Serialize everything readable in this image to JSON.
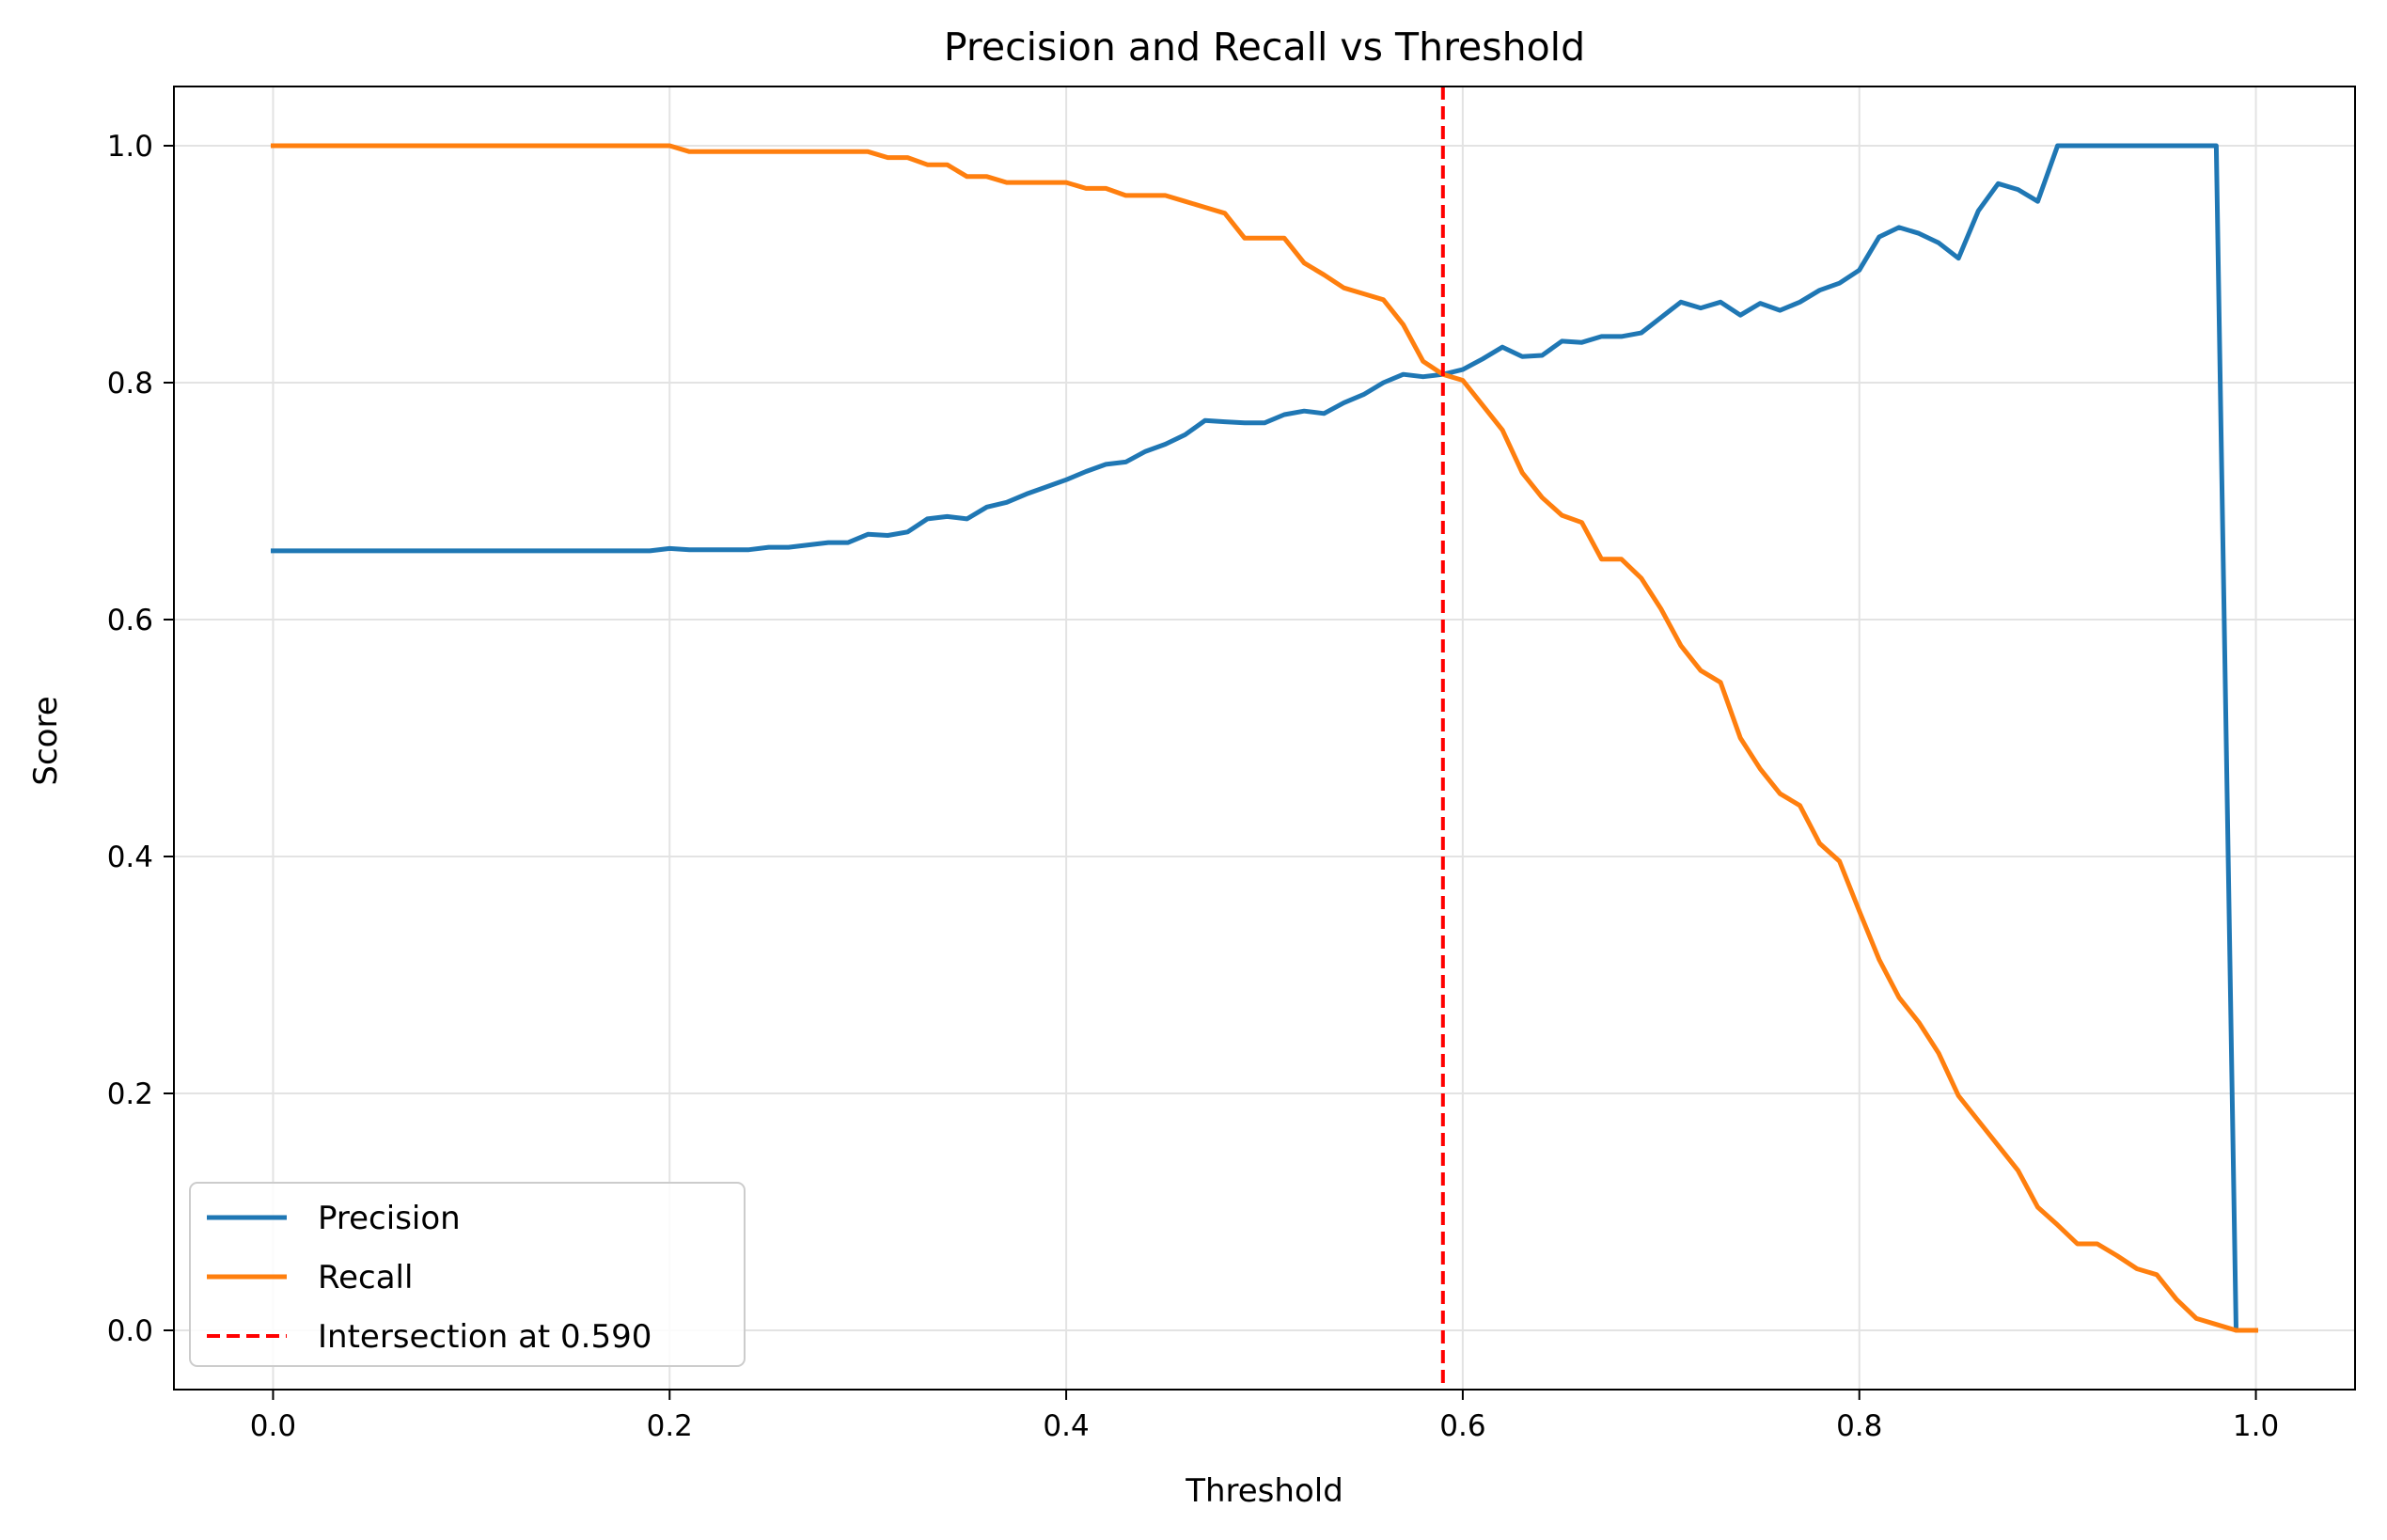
{
  "chart_data": {
    "type": "line",
    "title": "Precision and Recall vs Threshold",
    "xlabel": "Threshold",
    "ylabel": "Score",
    "xlim": [
      -0.05,
      1.05
    ],
    "ylim": [
      -0.05,
      1.05
    ],
    "xticks": [
      0.0,
      0.2,
      0.4,
      0.6,
      0.8,
      1.0
    ],
    "xtick_labels": [
      "0.0",
      "0.2",
      "0.4",
      "0.6",
      "0.8",
      "1.0"
    ],
    "yticks": [
      0.0,
      0.2,
      0.4,
      0.6,
      0.8,
      1.0
    ],
    "ytick_labels": [
      "0.0",
      "0.2",
      "0.4",
      "0.6",
      "0.8",
      "1.0"
    ],
    "grid": true,
    "legend_position": "lower-left",
    "series": [
      {
        "name": "Precision",
        "color": "#1f77b4",
        "x": [
          0.0,
          0.01,
          0.02,
          0.03,
          0.04,
          0.05,
          0.06,
          0.07,
          0.08,
          0.09,
          0.1,
          0.11,
          0.12,
          0.13,
          0.14,
          0.15,
          0.16,
          0.17,
          0.18,
          0.19,
          0.2,
          0.21,
          0.22,
          0.23,
          0.24,
          0.25,
          0.26,
          0.27,
          0.28,
          0.29,
          0.3,
          0.31,
          0.32,
          0.33,
          0.34,
          0.35,
          0.36,
          0.37,
          0.38,
          0.39,
          0.4,
          0.41,
          0.42,
          0.43,
          0.44,
          0.45,
          0.46,
          0.47,
          0.48,
          0.49,
          0.5,
          0.51,
          0.52,
          0.53,
          0.54,
          0.55,
          0.56,
          0.57,
          0.58,
          0.59,
          0.6,
          0.61,
          0.62,
          0.63,
          0.64,
          0.65,
          0.66,
          0.67,
          0.68,
          0.69,
          0.7,
          0.71,
          0.72,
          0.73,
          0.74,
          0.75,
          0.76,
          0.77,
          0.78,
          0.79,
          0.8,
          0.81,
          0.82,
          0.83,
          0.84,
          0.85,
          0.86,
          0.87,
          0.88,
          0.89,
          0.9,
          0.91,
          0.92,
          0.93,
          0.94,
          0.95,
          0.96,
          0.97,
          0.98,
          0.99,
          1.0
        ],
        "y": [
          0.658,
          0.658,
          0.658,
          0.658,
          0.658,
          0.658,
          0.658,
          0.658,
          0.658,
          0.658,
          0.658,
          0.658,
          0.658,
          0.658,
          0.658,
          0.658,
          0.658,
          0.658,
          0.658,
          0.658,
          0.66,
          0.659,
          0.659,
          0.659,
          0.659,
          0.661,
          0.661,
          0.663,
          0.665,
          0.665,
          0.672,
          0.671,
          0.674,
          0.685,
          0.687,
          0.685,
          0.695,
          0.699,
          0.706,
          0.712,
          0.718,
          0.725,
          0.731,
          0.733,
          0.742,
          0.748,
          0.756,
          0.768,
          0.767,
          0.766,
          0.766,
          0.773,
          0.776,
          0.774,
          0.783,
          0.79,
          0.8,
          0.807,
          0.805,
          0.807,
          0.811,
          0.82,
          0.83,
          0.822,
          0.823,
          0.835,
          0.834,
          0.839,
          0.839,
          0.842,
          0.855,
          0.868,
          0.863,
          0.868,
          0.857,
          0.867,
          0.861,
          0.868,
          0.878,
          0.884,
          0.895,
          0.923,
          0.931,
          0.926,
          0.918,
          0.905,
          0.945,
          0.968,
          0.963,
          0.953,
          1.0,
          1.0,
          1.0,
          1.0,
          1.0,
          1.0,
          1.0,
          1.0,
          1.0,
          0.0,
          0.0
        ]
      },
      {
        "name": "Recall",
        "color": "#ff7f0e",
        "x": [
          0.0,
          0.01,
          0.02,
          0.03,
          0.04,
          0.05,
          0.06,
          0.07,
          0.08,
          0.09,
          0.1,
          0.11,
          0.12,
          0.13,
          0.14,
          0.15,
          0.16,
          0.17,
          0.18,
          0.19,
          0.2,
          0.21,
          0.22,
          0.23,
          0.24,
          0.25,
          0.26,
          0.27,
          0.28,
          0.29,
          0.3,
          0.31,
          0.32,
          0.33,
          0.34,
          0.35,
          0.36,
          0.37,
          0.38,
          0.39,
          0.4,
          0.41,
          0.42,
          0.43,
          0.44,
          0.45,
          0.46,
          0.47,
          0.48,
          0.49,
          0.5,
          0.51,
          0.52,
          0.53,
          0.54,
          0.55,
          0.56,
          0.57,
          0.58,
          0.59,
          0.6,
          0.61,
          0.62,
          0.63,
          0.64,
          0.65,
          0.66,
          0.67,
          0.68,
          0.69,
          0.7,
          0.71,
          0.72,
          0.73,
          0.74,
          0.75,
          0.76,
          0.77,
          0.78,
          0.79,
          0.8,
          0.81,
          0.82,
          0.83,
          0.84,
          0.85,
          0.86,
          0.87,
          0.88,
          0.89,
          0.9,
          0.91,
          0.92,
          0.93,
          0.94,
          0.95,
          0.96,
          0.97,
          0.98,
          0.99,
          1.0
        ],
        "y": [
          1.0,
          1.0,
          1.0,
          1.0,
          1.0,
          1.0,
          1.0,
          1.0,
          1.0,
          1.0,
          1.0,
          1.0,
          1.0,
          1.0,
          1.0,
          1.0,
          1.0,
          1.0,
          1.0,
          1.0,
          1.0,
          0.995,
          0.995,
          0.995,
          0.995,
          0.995,
          0.995,
          0.995,
          0.995,
          0.995,
          0.995,
          0.99,
          0.99,
          0.984,
          0.984,
          0.974,
          0.974,
          0.969,
          0.969,
          0.969,
          0.969,
          0.964,
          0.964,
          0.958,
          0.958,
          0.958,
          0.953,
          0.948,
          0.943,
          0.922,
          0.922,
          0.922,
          0.901,
          0.891,
          0.88,
          0.875,
          0.87,
          0.849,
          0.818,
          0.807,
          0.802,
          0.781,
          0.76,
          0.724,
          0.703,
          0.688,
          0.682,
          0.651,
          0.651,
          0.635,
          0.609,
          0.578,
          0.557,
          0.547,
          0.5,
          0.474,
          0.453,
          0.443,
          0.411,
          0.396,
          0.354,
          0.313,
          0.281,
          0.26,
          0.234,
          0.198,
          0.177,
          0.156,
          0.135,
          0.104,
          0.089,
          0.073,
          0.073,
          0.063,
          0.052,
          0.047,
          0.026,
          0.01,
          0.005,
          0.0,
          0.0
        ]
      }
    ],
    "intersection": {
      "name": "Intersection at 0.590",
      "x": 0.59,
      "color": "#ff0000",
      "style": "dashed"
    }
  }
}
